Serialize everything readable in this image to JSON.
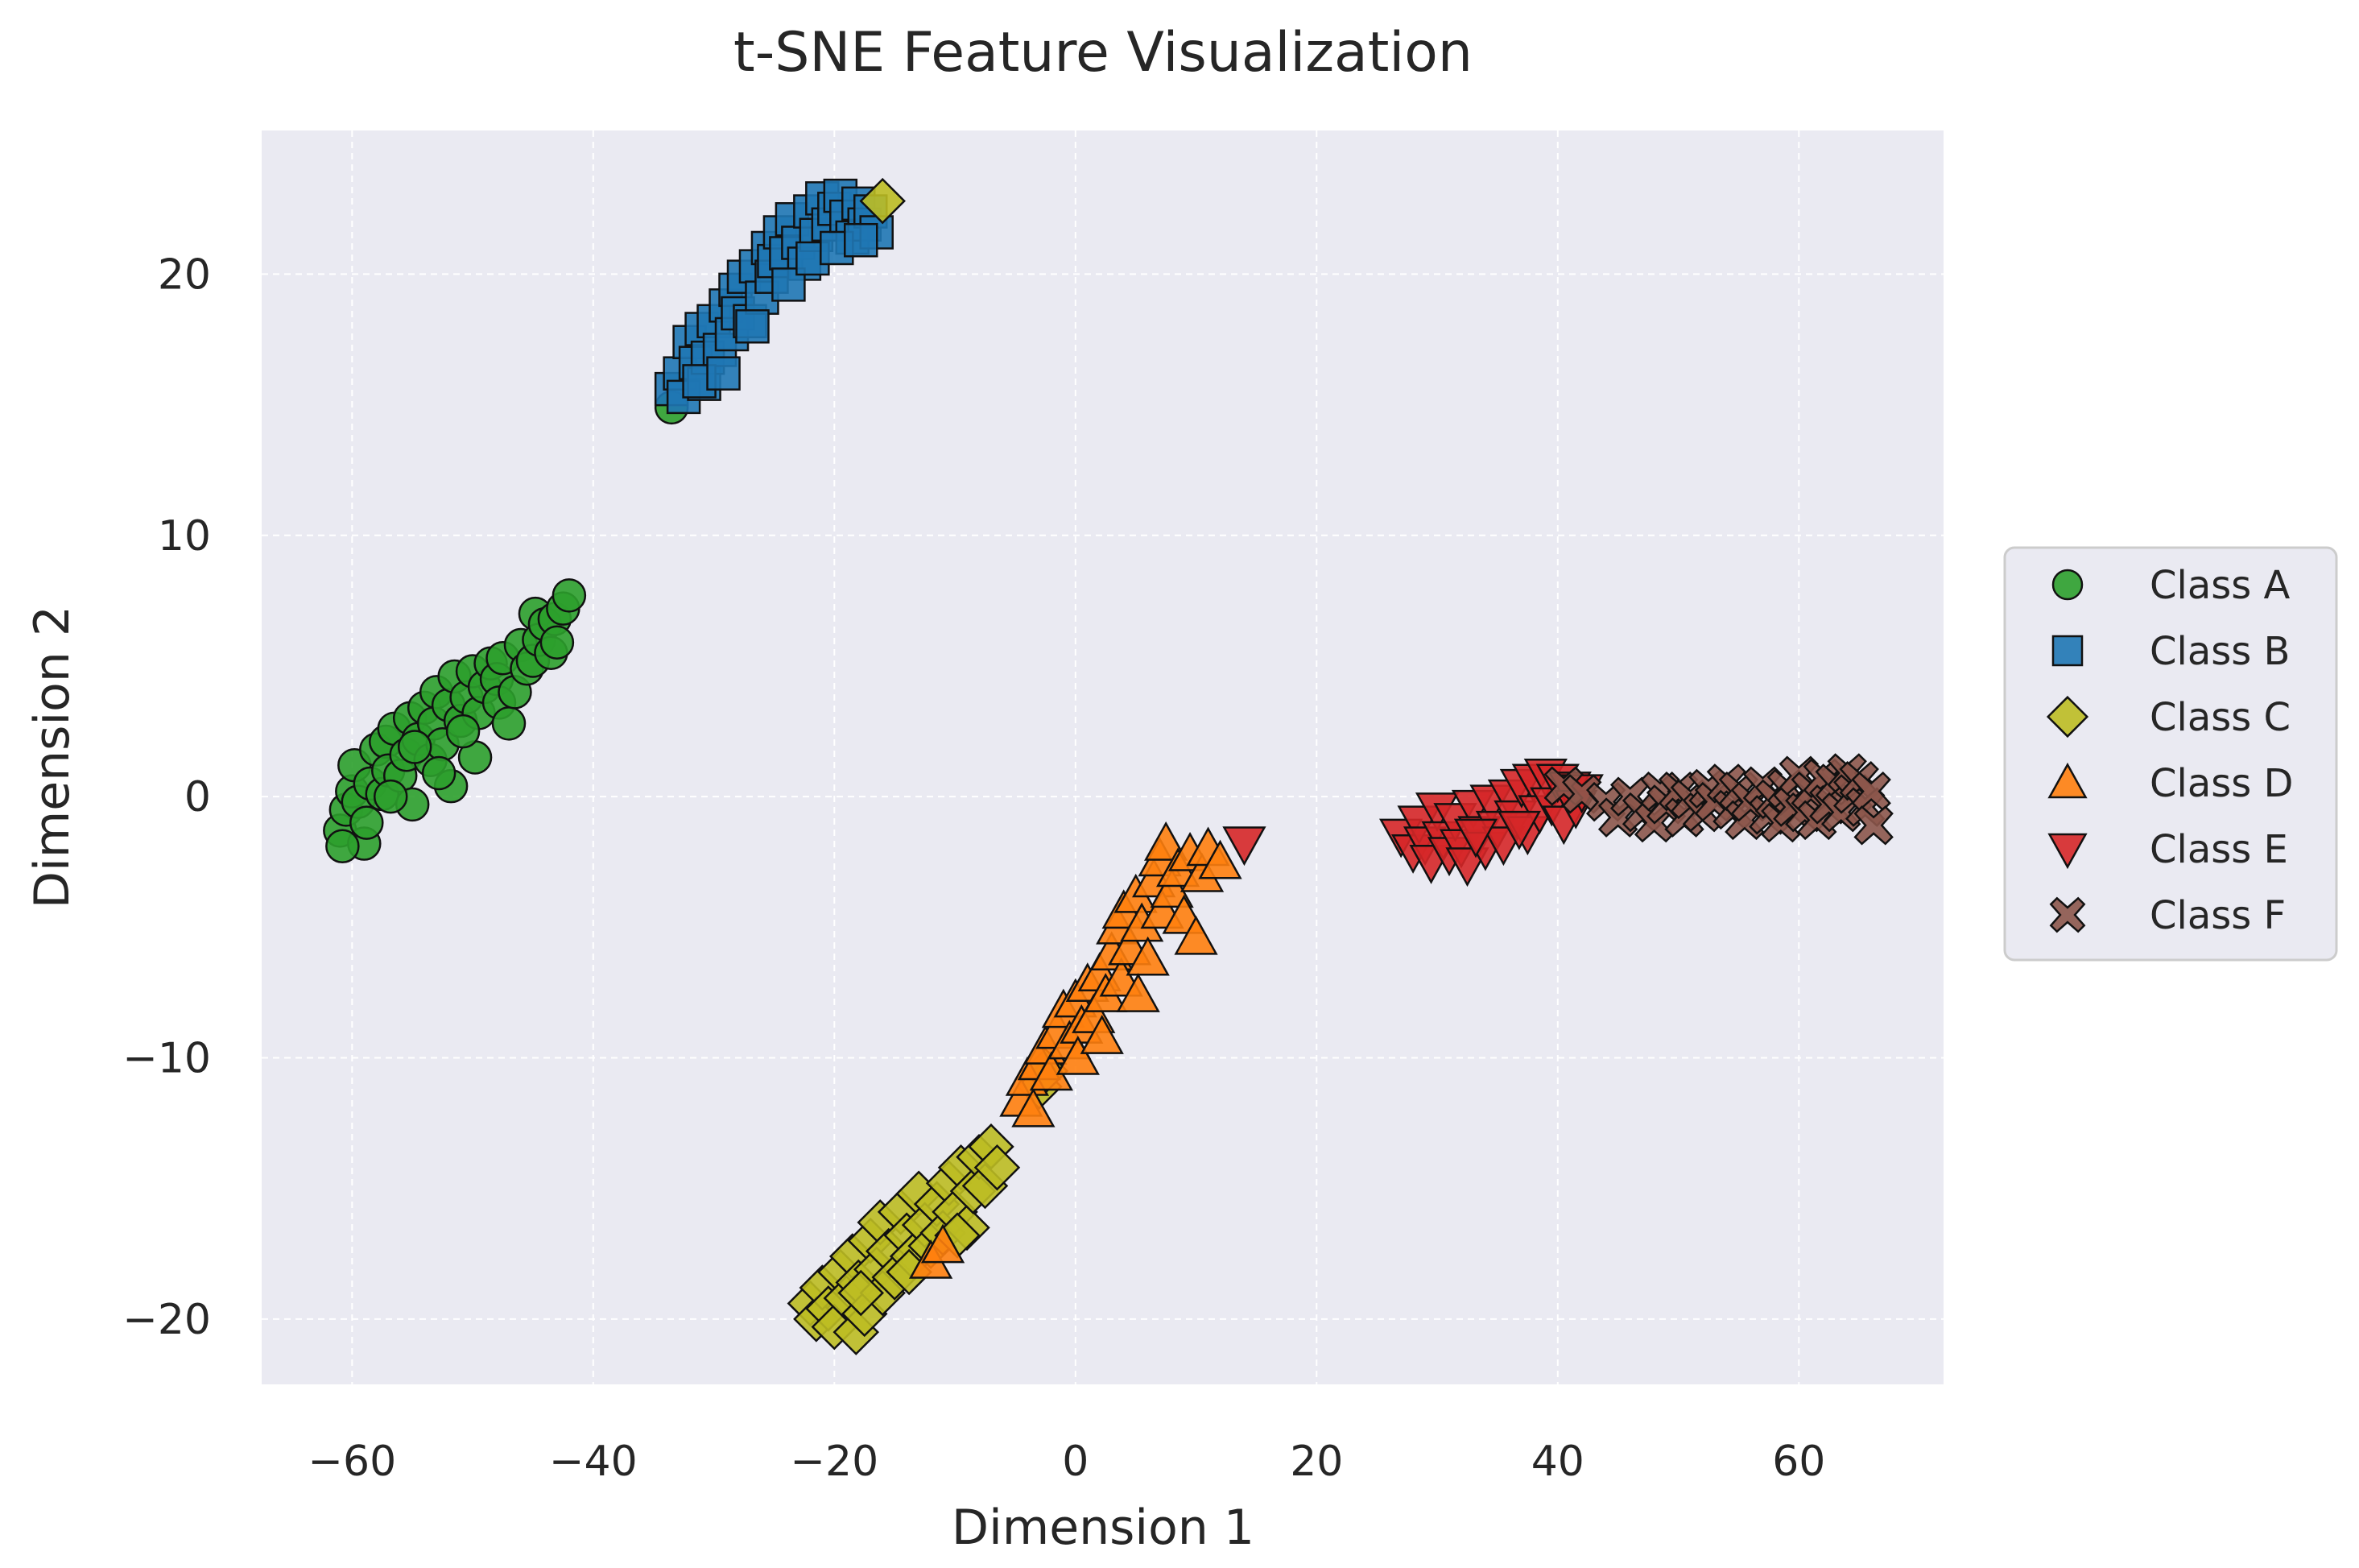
{
  "chart_data": {
    "type": "scatter",
    "title": "t-SNE Feature Visualization",
    "xlabel": "Dimension 1",
    "ylabel": "Dimension 2",
    "xlim": [
      -67.5,
      72
    ],
    "ylim": [
      -22.5,
      25.5
    ],
    "x_ticks": [
      -60,
      -40,
      -20,
      0,
      20,
      40,
      60
    ],
    "y_ticks": [
      -20,
      -10,
      0,
      10,
      20
    ],
    "x_tick_labels": [
      "−60",
      "−40",
      "−20",
      "0",
      "20",
      "40",
      "60"
    ],
    "y_tick_labels": [
      "−20",
      "−10",
      "0",
      "10",
      "20"
    ],
    "grid": true,
    "legend_position": "outside-right",
    "series": [
      {
        "name": "Class A",
        "marker": "circle",
        "color": "#2ca02c",
        "points": [
          [
            -61,
            -1.3
          ],
          [
            -60.5,
            -0.5
          ],
          [
            -60,
            0.2
          ],
          [
            -59.8,
            1.2
          ],
          [
            -59.5,
            -0.2
          ],
          [
            -59,
            -1.8
          ],
          [
            -58.5,
            0.5
          ],
          [
            -58,
            1.8
          ],
          [
            -57.5,
            0.1
          ],
          [
            -57.2,
            2.1
          ],
          [
            -57,
            1.0
          ],
          [
            -56.5,
            2.6
          ],
          [
            -56,
            0.8
          ],
          [
            -55.5,
            1.6
          ],
          [
            -55.2,
            3.0
          ],
          [
            -55,
            -0.3
          ],
          [
            -54.5,
            2.2
          ],
          [
            -54,
            3.4
          ],
          [
            -53.5,
            1.4
          ],
          [
            -53.2,
            2.8
          ],
          [
            -53,
            4.0
          ],
          [
            -52.5,
            2.0
          ],
          [
            -52,
            3.5
          ],
          [
            -51.8,
            0.4
          ],
          [
            -51.5,
            4.6
          ],
          [
            -51,
            2.9
          ],
          [
            -50.5,
            3.8
          ],
          [
            -50,
            4.8
          ],
          [
            -49.8,
            1.5
          ],
          [
            -49.5,
            3.2
          ],
          [
            -49,
            4.2
          ],
          [
            -48.5,
            5.1
          ],
          [
            -48,
            4.5
          ],
          [
            -47.8,
            3.6
          ],
          [
            -47.5,
            5.3
          ],
          [
            -47,
            2.8
          ],
          [
            -46.5,
            4.0
          ],
          [
            -46,
            5.8
          ],
          [
            -45.5,
            4.9
          ],
          [
            -45,
            5.2
          ],
          [
            -44.8,
            7.0
          ],
          [
            -44.5,
            6.0
          ],
          [
            -44,
            6.6
          ],
          [
            -43.5,
            5.5
          ],
          [
            -43.2,
            6.8
          ],
          [
            -43,
            5.9
          ],
          [
            -42.5,
            7.2
          ],
          [
            -42,
            7.7
          ],
          [
            -33.5,
            14.9
          ],
          [
            -60.8,
            -1.9
          ],
          [
            -58.8,
            -1.0
          ],
          [
            -56.8,
            0.0
          ],
          [
            -54.8,
            1.9
          ],
          [
            -52.8,
            0.9
          ],
          [
            -50.8,
            2.5
          ]
        ]
      },
      {
        "name": "Class B",
        "marker": "square",
        "color": "#1f77b4",
        "points": [
          [
            -33.5,
            15.6
          ],
          [
            -32.8,
            16.2
          ],
          [
            -32.5,
            15.3
          ],
          [
            -32,
            17.4
          ],
          [
            -31.5,
            16.6
          ],
          [
            -31,
            17.9
          ],
          [
            -30.8,
            15.8
          ],
          [
            -30.5,
            16.8
          ],
          [
            -30,
            18.2
          ],
          [
            -29.5,
            17.1
          ],
          [
            -29,
            18.8
          ],
          [
            -28.5,
            17.7
          ],
          [
            -28.2,
            19.4
          ],
          [
            -28,
            18.5
          ],
          [
            -27.5,
            19.9
          ],
          [
            -27,
            18.2
          ],
          [
            -26.5,
            20.3
          ],
          [
            -26,
            19.1
          ],
          [
            -25.5,
            21.0
          ],
          [
            -25.2,
            19.9
          ],
          [
            -25,
            20.5
          ],
          [
            -24.5,
            21.6
          ],
          [
            -24,
            20.8
          ],
          [
            -23.5,
            22.1
          ],
          [
            -23,
            21.2
          ],
          [
            -22.5,
            20.4
          ],
          [
            -22,
            22.4
          ],
          [
            -21.5,
            21.5
          ],
          [
            -21,
            22.9
          ],
          [
            -20.5,
            21.9
          ],
          [
            -20,
            22.5
          ],
          [
            -19.5,
            23.0
          ],
          [
            -19,
            22.2
          ],
          [
            -18.5,
            21.4
          ],
          [
            -18,
            22.7
          ],
          [
            -17.5,
            21.9
          ],
          [
            -17,
            22.4
          ],
          [
            -16.5,
            21.6
          ],
          [
            -31.2,
            15.9
          ],
          [
            -29.2,
            16.2
          ],
          [
            -26.8,
            18.0
          ],
          [
            -23.8,
            19.6
          ],
          [
            -21.8,
            20.6
          ],
          [
            -19.8,
            21.0
          ],
          [
            -17.8,
            21.3
          ]
        ]
      },
      {
        "name": "Class C",
        "marker": "diamond",
        "color": "#bcbd22",
        "points": [
          [
            -22,
            -19.4
          ],
          [
            -21.5,
            -20.0
          ],
          [
            -21,
            -18.8
          ],
          [
            -20.5,
            -19.6
          ],
          [
            -20,
            -20.3
          ],
          [
            -19.5,
            -18.2
          ],
          [
            -19,
            -19.2
          ],
          [
            -18.5,
            -17.6
          ],
          [
            -18.2,
            -20.5
          ],
          [
            -18,
            -18.6
          ],
          [
            -17.5,
            -19.8
          ],
          [
            -17,
            -17.0
          ],
          [
            -16.5,
            -18.1
          ],
          [
            -16.2,
            -16.3
          ],
          [
            -16,
            -19.0
          ],
          [
            -15.5,
            -17.4
          ],
          [
            -15,
            -18.4
          ],
          [
            -14.5,
            -15.9
          ],
          [
            -14,
            -16.8
          ],
          [
            -13.5,
            -17.6
          ],
          [
            -13,
            -15.2
          ],
          [
            -12.5,
            -16.4
          ],
          [
            -12,
            -17.2
          ],
          [
            -11.5,
            -15.6
          ],
          [
            -11,
            -16.7
          ],
          [
            -10.5,
            -14.8
          ],
          [
            -10,
            -15.9
          ],
          [
            -9.5,
            -14.2
          ],
          [
            -9,
            -16.5
          ],
          [
            -8.5,
            -15.1
          ],
          [
            -8,
            -13.8
          ],
          [
            -7.5,
            -14.9
          ],
          [
            -7,
            -13.4
          ],
          [
            -6.5,
            -14.2
          ],
          [
            -3,
            -11.1
          ],
          [
            -2.5,
            -10.5
          ],
          [
            -16,
            22.8
          ],
          [
            -17.8,
            -19.0
          ],
          [
            -13.8,
            -18.2
          ],
          [
            -9.8,
            -16.8
          ]
        ]
      },
      {
        "name": "Class D",
        "marker": "triangle-up",
        "color": "#ff7f0e",
        "points": [
          [
            -4.5,
            -11.6
          ],
          [
            -4,
            -10.8
          ],
          [
            -3.5,
            -12.0
          ],
          [
            -3,
            -10.2
          ],
          [
            -2.5,
            -9.6
          ],
          [
            -2,
            -10.6
          ],
          [
            -1.5,
            -9.0
          ],
          [
            -1,
            -8.2
          ],
          [
            -0.5,
            -9.4
          ],
          [
            0,
            -7.8
          ],
          [
            0.5,
            -8.8
          ],
          [
            1,
            -7.2
          ],
          [
            1.5,
            -8.4
          ],
          [
            2,
            -6.8
          ],
          [
            2.5,
            -7.6
          ],
          [
            3,
            -6.0
          ],
          [
            3.5,
            -5.0
          ],
          [
            3.8,
            -7.0
          ],
          [
            4,
            -4.4
          ],
          [
            4.5,
            -5.8
          ],
          [
            5,
            -3.8
          ],
          [
            5.5,
            -4.9
          ],
          [
            6,
            -6.2
          ],
          [
            6.5,
            -3.2
          ],
          [
            7,
            -2.4
          ],
          [
            7.2,
            -4.4
          ],
          [
            7.5,
            -1.8
          ],
          [
            8,
            -3.6
          ],
          [
            8.5,
            -2.8
          ],
          [
            9,
            -4.6
          ],
          [
            9.5,
            -2.2
          ],
          [
            10,
            -5.4
          ],
          [
            10.5,
            -3.0
          ],
          [
            11,
            -2.0
          ],
          [
            12,
            -2.5
          ],
          [
            -12,
            -17.8
          ],
          [
            -11,
            -17.2
          ],
          [
            0.2,
            -10.0
          ],
          [
            2.2,
            -9.2
          ],
          [
            5.2,
            -7.6
          ]
        ]
      },
      {
        "name": "Class E",
        "marker": "triangle-down",
        "color": "#d62728",
        "points": [
          [
            27,
            -1.5
          ],
          [
            28,
            -2.1
          ],
          [
            28.5,
            -1.0
          ],
          [
            29,
            -1.8
          ],
          [
            29.5,
            -2.5
          ],
          [
            30,
            -0.5
          ],
          [
            30.5,
            -1.6
          ],
          [
            31,
            -2.2
          ],
          [
            31.5,
            -0.9
          ],
          [
            32,
            -1.9
          ],
          [
            32.5,
            -2.6
          ],
          [
            33,
            -0.4
          ],
          [
            33.5,
            -1.4
          ],
          [
            34,
            -2.0
          ],
          [
            34.5,
            -0.2
          ],
          [
            35,
            -1.2
          ],
          [
            35.5,
            -1.8
          ],
          [
            36,
            0.0
          ],
          [
            36.5,
            -0.8
          ],
          [
            37,
            0.4
          ],
          [
            37.5,
            -1.4
          ],
          [
            38,
            0.6
          ],
          [
            38.5,
            -0.6
          ],
          [
            39,
            0.8
          ],
          [
            39.5,
            -0.3
          ],
          [
            40,
            0.6
          ],
          [
            40.5,
            -1.0
          ],
          [
            41,
            0.3
          ],
          [
            41.5,
            -0.4
          ],
          [
            42,
            0.2
          ],
          [
            14,
            -1.8
          ],
          [
            33.2,
            -1.5
          ],
          [
            36.8,
            -1.2
          ]
        ]
      },
      {
        "name": "Class F",
        "marker": "x-filled",
        "color": "#8c564b",
        "points": [
          [
            40.5,
            0.4
          ],
          [
            42,
            0.1
          ],
          [
            44,
            -0.2
          ],
          [
            45,
            -0.8
          ],
          [
            46,
            0.0
          ],
          [
            47,
            -0.6
          ],
          [
            48,
            -1.0
          ],
          [
            48.5,
            0.2
          ],
          [
            49,
            -0.3
          ],
          [
            50,
            0.2
          ],
          [
            50.5,
            -0.8
          ],
          [
            51,
            -0.1
          ],
          [
            52,
            -0.6
          ],
          [
            52.5,
            0.3
          ],
          [
            53,
            -0.2
          ],
          [
            54,
            0.5
          ],
          [
            54.5,
            -0.5
          ],
          [
            55,
            0.2
          ],
          [
            55.5,
            -0.9
          ],
          [
            56,
            -0.2
          ],
          [
            57,
            0.4
          ],
          [
            57.5,
            -0.7
          ],
          [
            58,
            -0.1
          ],
          [
            58.5,
            -1.0
          ],
          [
            59,
            0.3
          ],
          [
            59.5,
            -0.4
          ],
          [
            60,
            0.8
          ],
          [
            60.5,
            -0.6
          ],
          [
            61,
            0.2
          ],
          [
            61.5,
            -0.9
          ],
          [
            62,
            0.7
          ],
          [
            62.5,
            -0.3
          ],
          [
            63,
            0.5
          ],
          [
            63.5,
            -0.6
          ],
          [
            64,
            0.9
          ],
          [
            64.5,
            0.1
          ],
          [
            65,
            0.6
          ],
          [
            65.5,
            -0.4
          ],
          [
            66,
            0.2
          ],
          [
            66.2,
            -1.1
          ]
        ]
      }
    ]
  }
}
